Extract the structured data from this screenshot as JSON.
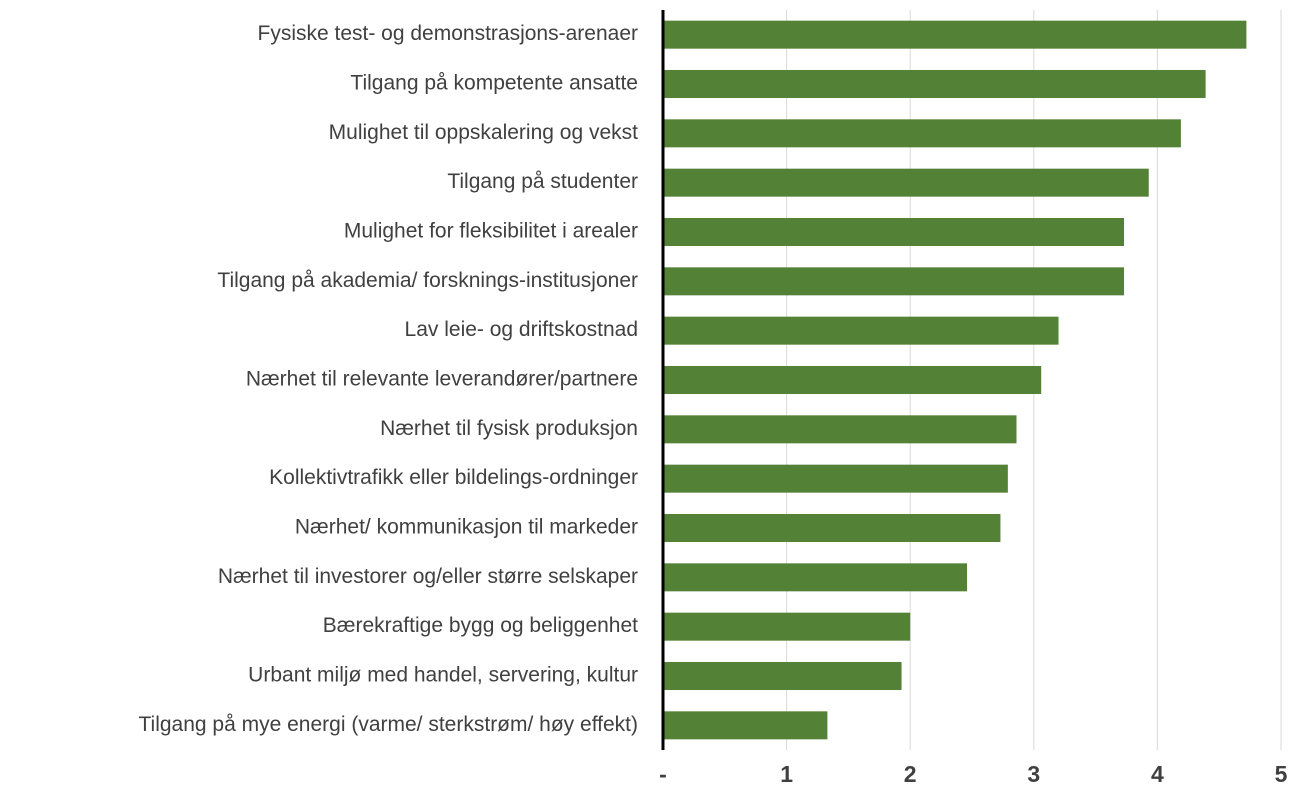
{
  "chart_data": {
    "type": "bar",
    "orientation": "horizontal",
    "categories": [
      "Fysiske test- og demonstrasjons-arenaer",
      "Tilgang på kompetente ansatte",
      "Mulighet til oppskalering og vekst",
      "Tilgang på studenter",
      "Mulighet for fleksibilitet i arealer",
      "Tilgang på akademia/ forsknings-institusjoner",
      "Lav leie- og driftskostnad",
      "Nærhet til relevante leverandører/partnere",
      "Nærhet til fysisk produksjon",
      "Kollektivtrafikk eller bildelings-ordninger",
      "Nærhet/ kommunikasjon til markeder",
      "Nærhet til investorer og/eller større selskaper",
      "Bærekraftige bygg og beliggenhet",
      "Urbant miljø med handel, servering, kultur",
      "Tilgang på mye energi (varme/ sterkstrøm/ høy effekt)"
    ],
    "values": [
      4.72,
      4.39,
      4.19,
      3.93,
      3.73,
      3.73,
      3.2,
      3.06,
      2.86,
      2.79,
      2.73,
      2.46,
      2.0,
      1.93,
      1.33
    ],
    "color": "#538135",
    "xlim": [
      0,
      5
    ],
    "xticks": [
      {
        "value": 0,
        "label": "-"
      },
      1,
      2,
      3,
      4,
      5
    ],
    "grid": true
  }
}
